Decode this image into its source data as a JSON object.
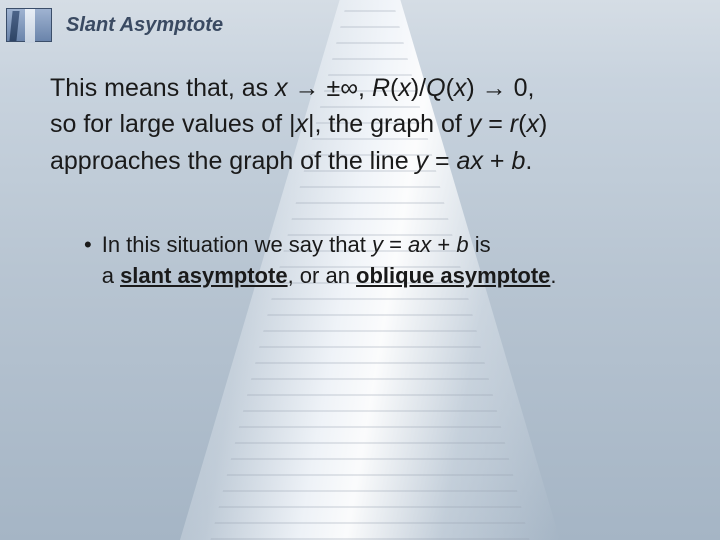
{
  "title": "Slant Asymptote",
  "para": {
    "pre1": "This means that, as ",
    "expr1_it": "x",
    "arrow1": " → ±∞, ",
    "expr2_it": "R",
    "p3": "(",
    "x1_it": "x",
    "p4": ")/",
    "Q_it": "Q",
    "p5": "(",
    "x2_it": "x",
    "p6": ") → 0,",
    "line2a": "so for large values of |",
    "x3_it": "x",
    "line2b": "|, the graph of ",
    "y1_it": "y",
    "eq1": " = ",
    "r_it": "r",
    "p7": "(",
    "x4_it": "x",
    "p8": ")",
    "line3a": "approaches the graph of the line ",
    "y2_it": "y",
    "eq2": " = ",
    "ax_it": "ax",
    "plus": " + ",
    "b_it": "b",
    "dot": "."
  },
  "bullet": {
    "l1a": "In this situation we say that ",
    "y_it": "y",
    "eq": " = ",
    "ax_it": "ax",
    "plus": " + ",
    "b_it": "b",
    "l1b": " is",
    "l2a": "a ",
    "term1": "slant asymptote",
    "l2b": ", or an ",
    "term2": "oblique asymptote",
    "l2c": "."
  },
  "colors": {
    "title": "#3a4a62",
    "text": "#1a1a1a"
  }
}
